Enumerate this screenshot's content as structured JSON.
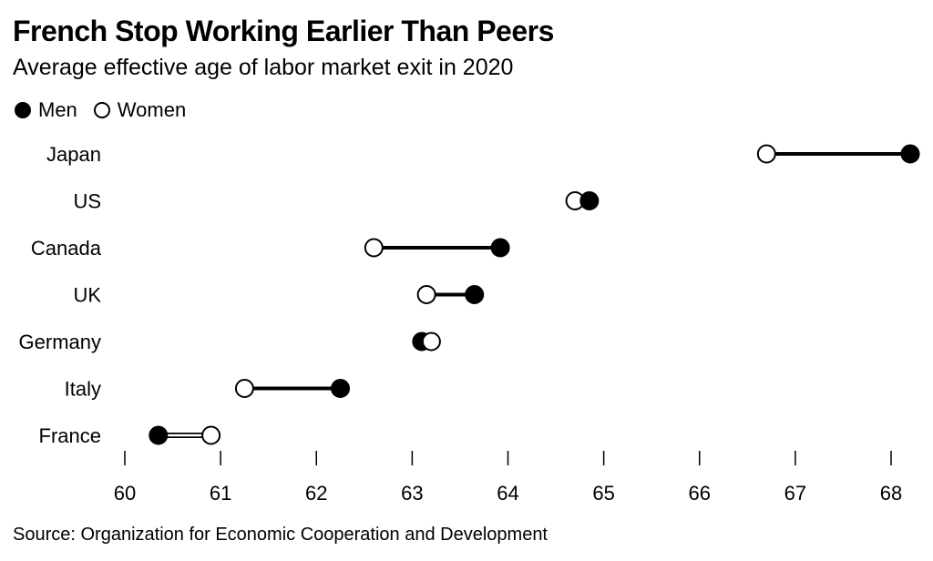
{
  "header": {
    "title": "French Stop Working Earlier Than Peers",
    "subtitle": "Average effective age of labor market exit in 2020"
  },
  "legend": {
    "men_label": "Men",
    "women_label": "Women"
  },
  "footer": {
    "source": "Source: Organization for Economic Cooperation and Development"
  },
  "chart_data": {
    "type": "scatter",
    "variant": "dumbbell",
    "title": "French Stop Working Earlier Than Peers",
    "subtitle": "Average effective age of labor market exit in 2020",
    "categories": [
      "Japan",
      "US",
      "Canada",
      "UK",
      "Germany",
      "Italy",
      "France"
    ],
    "series": [
      {
        "name": "Men",
        "marker": "filled",
        "values": [
          68.2,
          64.85,
          63.92,
          63.65,
          63.1,
          62.25,
          60.35
        ]
      },
      {
        "name": "Women",
        "marker": "open",
        "values": [
          66.7,
          64.7,
          62.6,
          63.15,
          63.2,
          61.25,
          60.9
        ]
      }
    ],
    "connector_color": {
      "default": "#000000",
      "women_higher": "#ffffff"
    },
    "x_ticks": [
      60,
      61,
      62,
      63,
      64,
      65,
      66,
      67,
      68
    ],
    "xlim": [
      60,
      68
    ],
    "xlabel": "",
    "ylabel": "",
    "grid": false,
    "legend_position": "top-left",
    "colors": {
      "marker": "#000000",
      "background": "#ffffff"
    },
    "source": "Source: Organization for Economic Cooperation and Development"
  }
}
